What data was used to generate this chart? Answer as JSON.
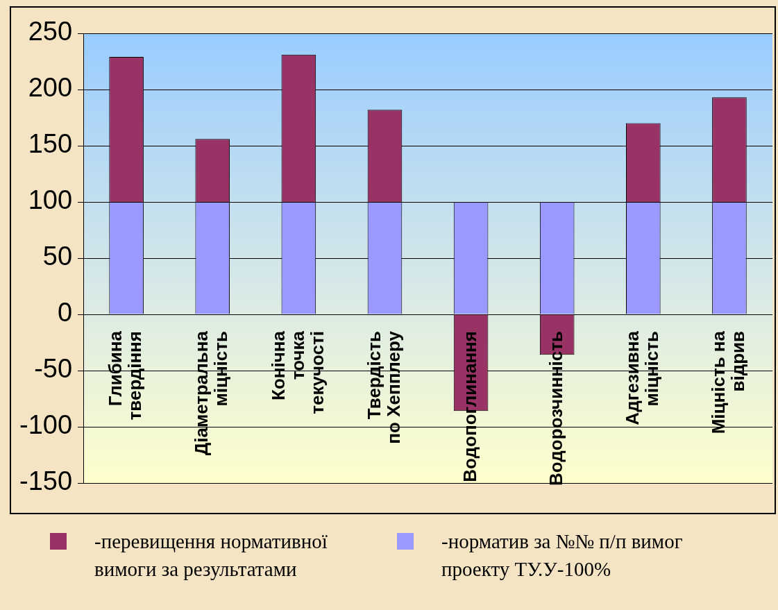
{
  "chart_data": {
    "type": "bar",
    "stacked": true,
    "categories": [
      "Глибина твердіння",
      "Діаметральна міцність",
      "Конічна точка текучості",
      "Твердість по Хепплеру",
      "Водопоглинання",
      "Водорозчинність",
      "Адгезивна міцність",
      "Міцність на відрив"
    ],
    "series": [
      {
        "name": "-норматив за №№ п/п вимог проекту ТУ.У-100%",
        "color": "#9999ff",
        "values": [
          100,
          100,
          100,
          100,
          100,
          100,
          100,
          100
        ]
      },
      {
        "name": "-перевищення нормативної вимоги за результатами",
        "color": "#993366",
        "values": [
          129,
          56,
          131,
          82,
          -86,
          -36,
          70,
          93
        ]
      }
    ],
    "ylim": [
      -150,
      250
    ],
    "yticks": [
      -150,
      -100,
      -50,
      0,
      50,
      100,
      150,
      200,
      250
    ],
    "grid": "y",
    "legend": "bottom"
  }
}
